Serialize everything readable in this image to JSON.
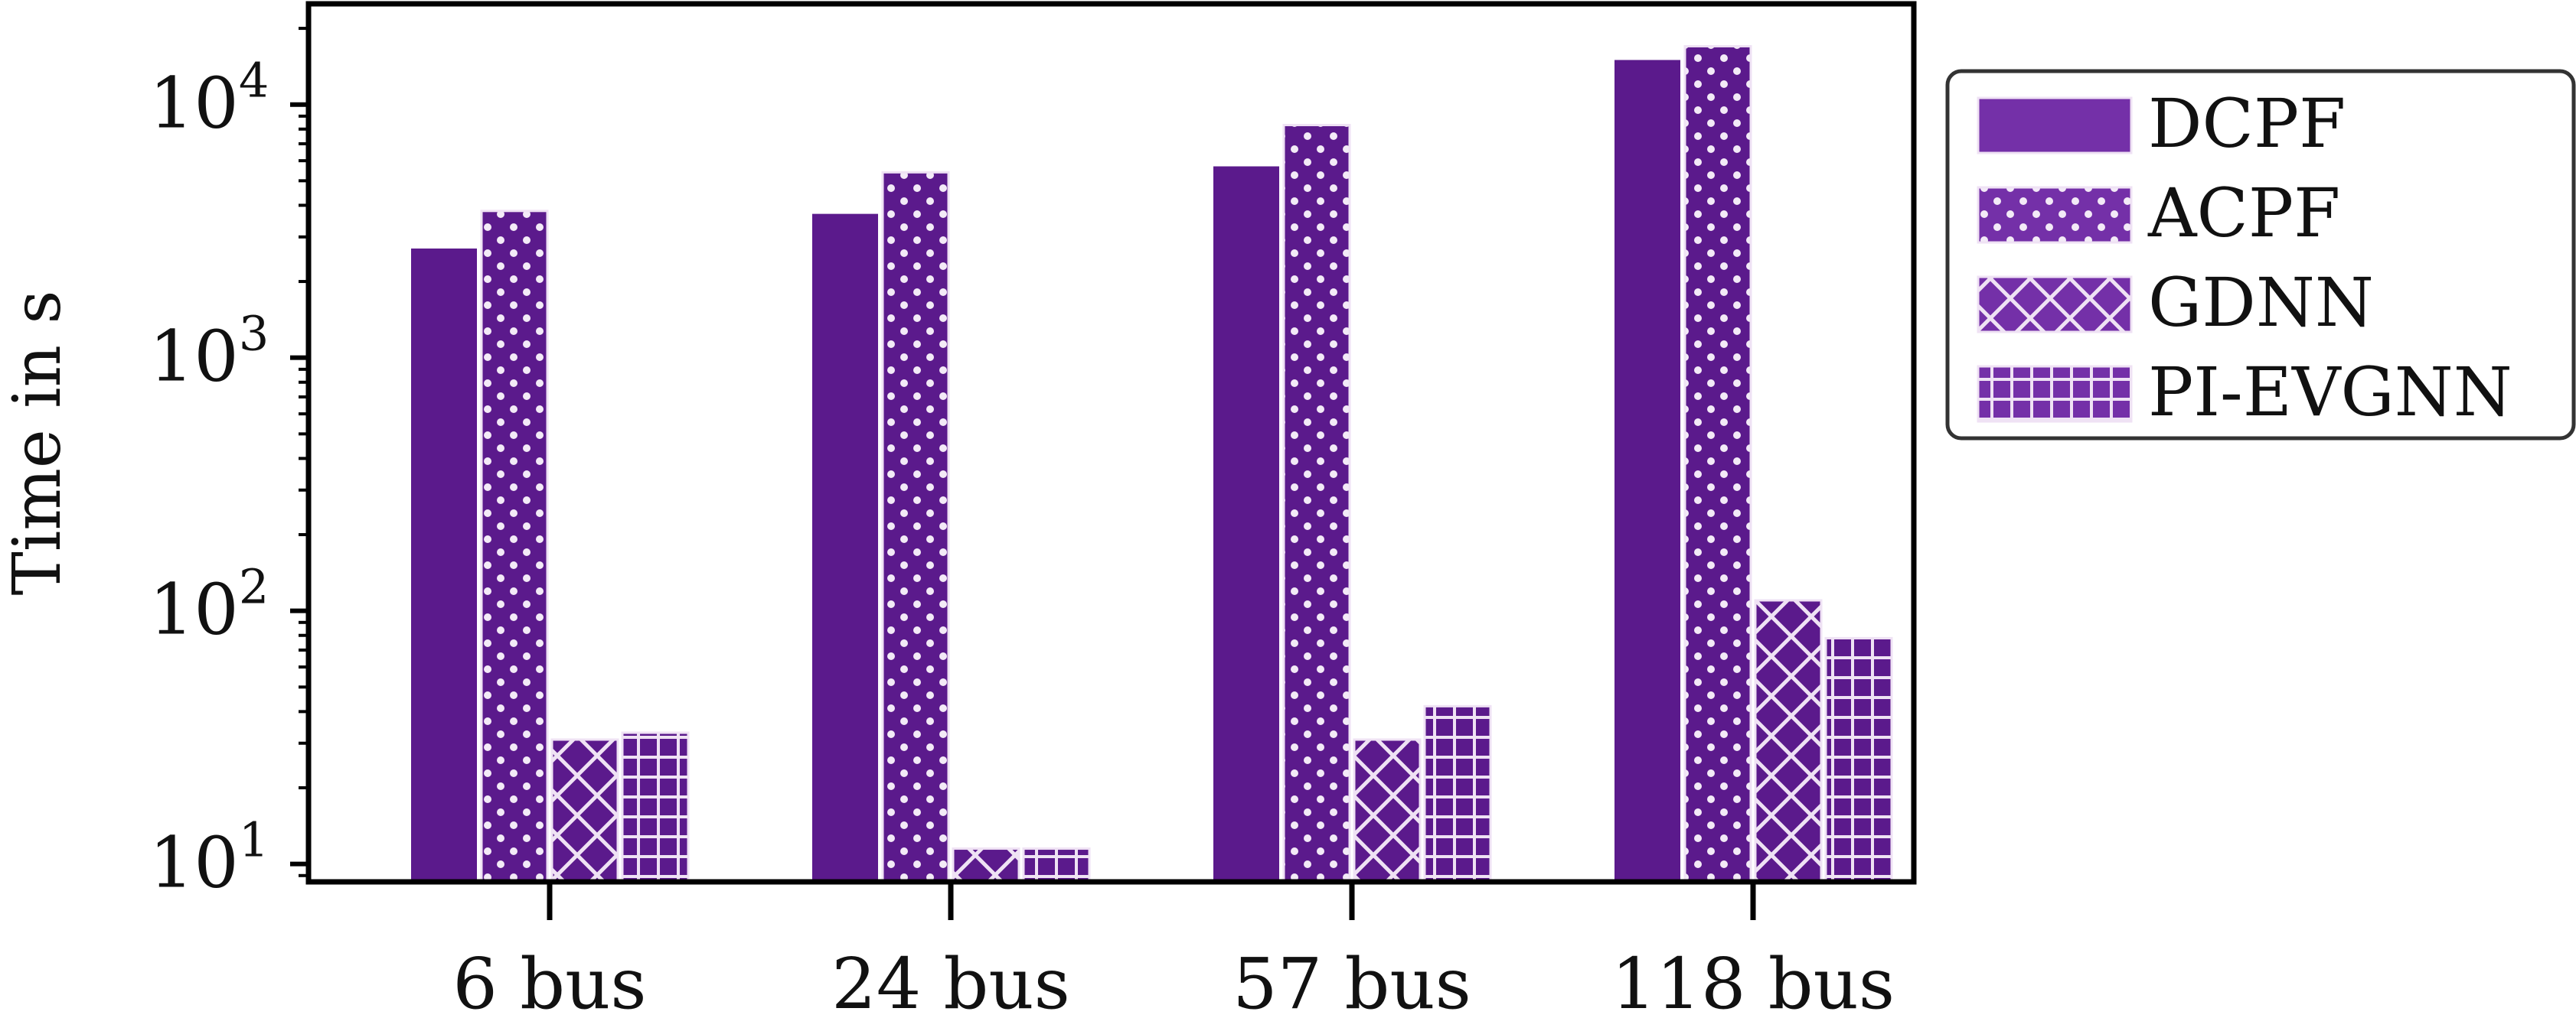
{
  "chart_data": {
    "type": "bar",
    "title": "",
    "xlabel": "",
    "ylabel": "Time in s",
    "y_scale": "log",
    "ylim": [
      8.5,
      25000
    ],
    "categories": [
      "6 bus",
      "24 bus",
      "57 bus",
      "118 bus"
    ],
    "y_ticks": [
      {
        "base": "10",
        "exp": "1"
      },
      {
        "base": "10",
        "exp": "2"
      },
      {
        "base": "10",
        "exp": "3"
      },
      {
        "base": "10",
        "exp": "4"
      }
    ],
    "grid": false,
    "legend_position": "outside-right",
    "series": [
      {
        "name": "DCPF",
        "pattern": "solid",
        "values": [
          2700,
          3700,
          5700,
          15000
        ]
      },
      {
        "name": "ACPF",
        "pattern": "dots",
        "values": [
          3800,
          5400,
          8300,
          17000
        ]
      },
      {
        "name": "GDNN",
        "pattern": "crosshatch",
        "values": [
          31,
          11.5,
          31,
          110
        ]
      },
      {
        "name": "PI-EVGNN",
        "pattern": "grid",
        "values": [
          33,
          11.5,
          42,
          78
        ]
      }
    ]
  },
  "colors": {
    "bar": "#5b1a8c",
    "legend_bar": "#7430a8",
    "hatch": "#efe2f4",
    "axis": "#000000"
  }
}
